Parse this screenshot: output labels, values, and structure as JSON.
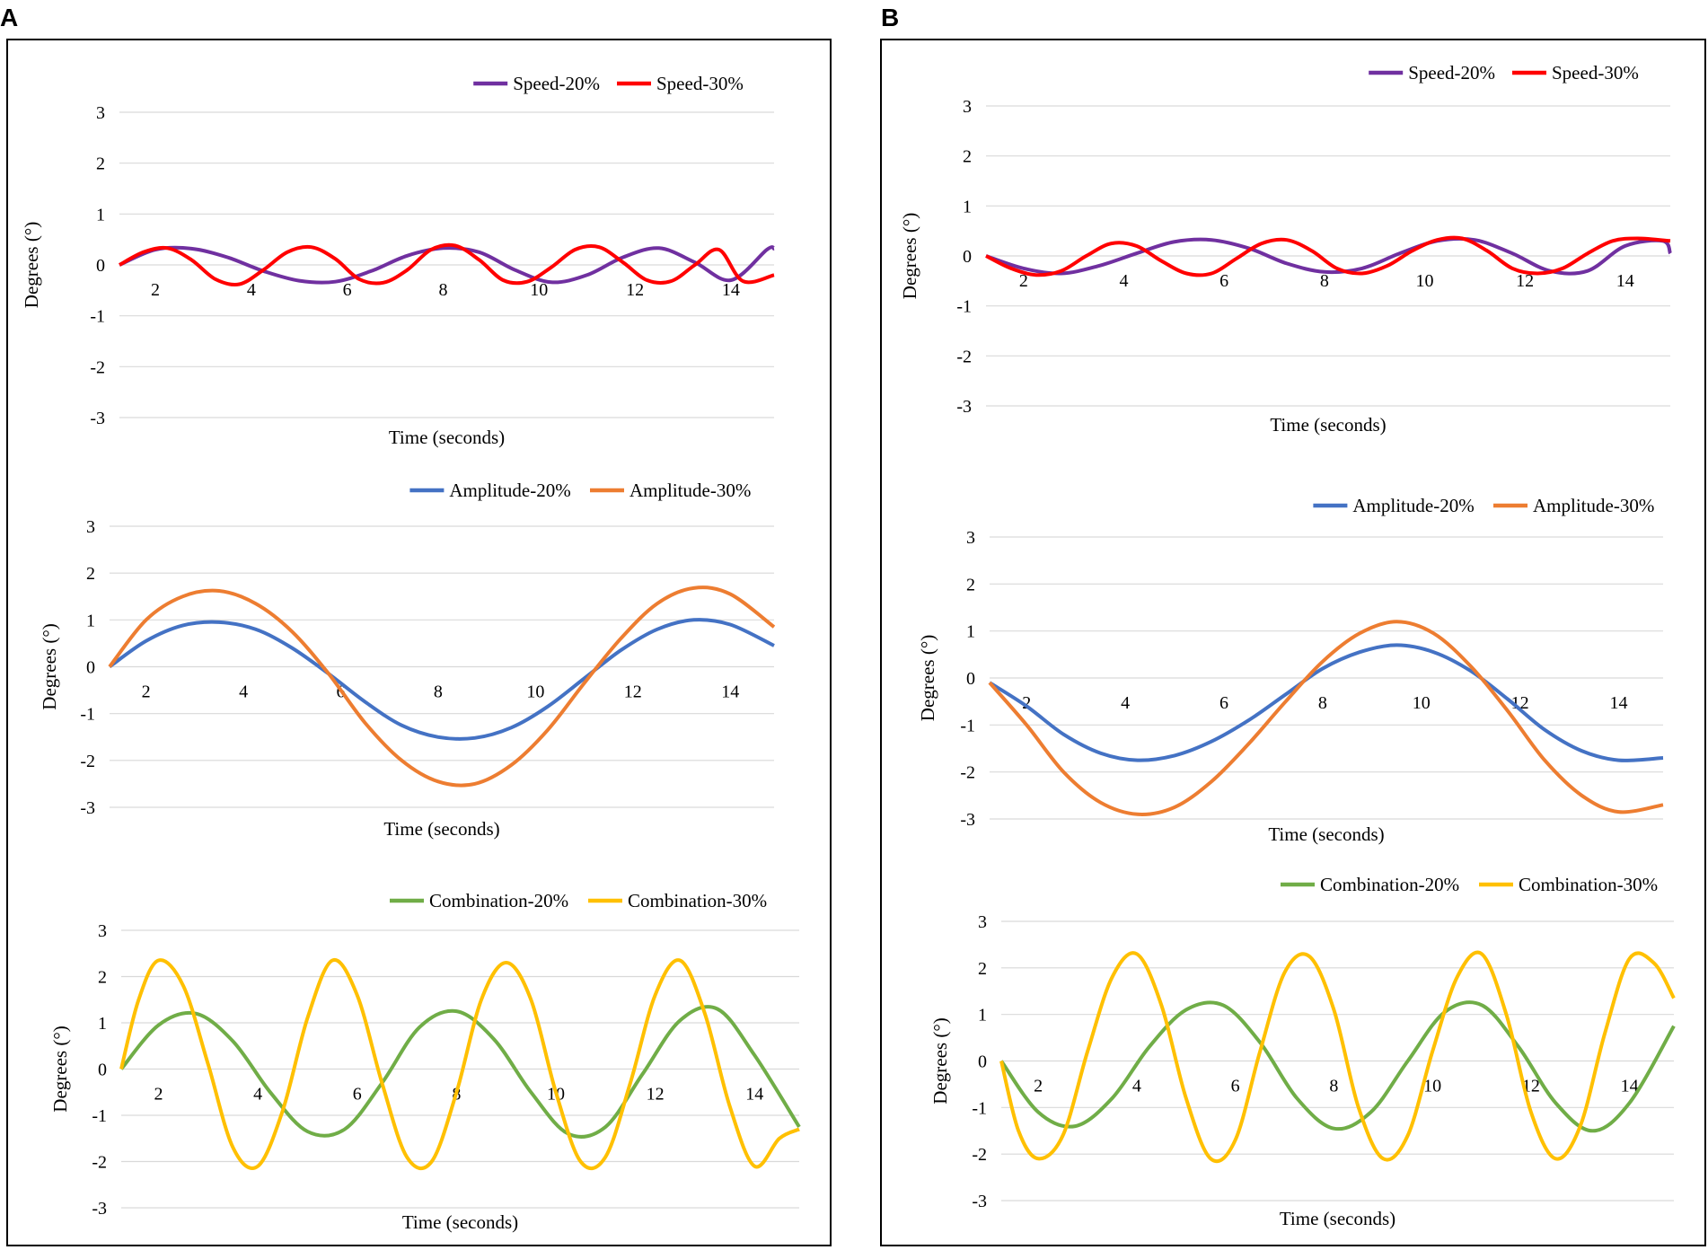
{
  "figure": {
    "panel_labels": [
      "A",
      "B"
    ]
  },
  "chart_data": [
    {
      "type": "line",
      "panel": "A",
      "xlabel": "Time (seconds)",
      "ylabel": "Degrees (°)",
      "xlim": [
        1.25,
        14.9
      ],
      "ylim": [
        -3,
        3
      ],
      "x_ticks": [
        "2",
        "4",
        "6",
        "8",
        "10",
        "12",
        "14"
      ],
      "y_ticks": [
        "3",
        "2",
        "1",
        "0",
        "-1",
        "-2",
        "-3"
      ],
      "series": [
        {
          "name": "Speed-20%",
          "color": "#7030A0",
          "x": [
            1.25,
            2,
            2.75,
            3.5,
            4.25,
            5,
            5.75,
            6.5,
            7.25,
            8,
            8.75,
            9.5,
            10.25,
            11,
            11.75,
            12.5,
            13.25,
            14,
            14.75,
            14.9
          ],
          "y": [
            0,
            0.3,
            0.32,
            0.15,
            -0.12,
            -0.31,
            -0.33,
            -0.12,
            0.18,
            0.33,
            0.25,
            -0.1,
            -0.34,
            -0.2,
            0.15,
            0.33,
            0.05,
            -0.3,
            0.3,
            0.32
          ]
        },
        {
          "name": "Speed-30%",
          "color": "#FF0000",
          "x": [
            1.25,
            1.75,
            2.25,
            2.75,
            3.25,
            3.75,
            4.25,
            4.75,
            5.25,
            5.75,
            6.25,
            6.75,
            7.25,
            7.75,
            8.25,
            8.75,
            9.25,
            9.75,
            10.25,
            10.75,
            11.25,
            11.75,
            12.25,
            12.75,
            13.25,
            13.75,
            14.25,
            14.9
          ],
          "y": [
            0,
            0.25,
            0.33,
            0.1,
            -0.28,
            -0.38,
            -0.1,
            0.25,
            0.35,
            0.12,
            -0.28,
            -0.35,
            -0.1,
            0.3,
            0.38,
            0.1,
            -0.3,
            -0.33,
            -0.05,
            0.3,
            0.35,
            0.05,
            -0.3,
            -0.32,
            0,
            0.3,
            -0.32,
            -0.2
          ]
        }
      ]
    },
    {
      "type": "line",
      "panel": "A",
      "xlabel": "Time (seconds)",
      "ylabel": "Degrees (°)",
      "xlim": [
        1.25,
        14.9
      ],
      "ylim": [
        -3,
        3
      ],
      "x_ticks": [
        "2",
        "4",
        "6",
        "8",
        "10",
        "12",
        "14"
      ],
      "y_ticks": [
        "3",
        "2",
        "1",
        "0",
        "-1",
        "-2",
        "-3"
      ],
      "series": [
        {
          "name": "Amplitude-20%",
          "color": "#4472C4",
          "x": [
            1.25,
            2,
            2.75,
            3.5,
            4.25,
            5,
            5.75,
            6.5,
            7.25,
            8,
            8.75,
            9.5,
            10.25,
            11,
            11.75,
            12.5,
            13.25,
            14,
            14.9
          ],
          "y": [
            0,
            0.55,
            0.88,
            0.95,
            0.8,
            0.4,
            -0.15,
            -0.75,
            -1.25,
            -1.5,
            -1.52,
            -1.3,
            -0.85,
            -0.25,
            0.35,
            0.8,
            1.0,
            0.9,
            0.45
          ]
        },
        {
          "name": "Amplitude-30%",
          "color": "#ED7D31",
          "x": [
            1.25,
            2,
            2.75,
            3.5,
            4.25,
            5,
            5.75,
            6.5,
            7.25,
            8,
            8.75,
            9.5,
            10.25,
            11,
            11.75,
            12.5,
            13.25,
            14,
            14.9
          ],
          "y": [
            0,
            1.0,
            1.5,
            1.62,
            1.35,
            0.75,
            -0.15,
            -1.2,
            -2.0,
            -2.45,
            -2.5,
            -2.1,
            -1.35,
            -0.35,
            0.6,
            1.35,
            1.68,
            1.55,
            0.85
          ]
        }
      ]
    },
    {
      "type": "line",
      "panel": "A",
      "xlabel": "Time (seconds)",
      "ylabel": "Degrees (°)",
      "xlim": [
        1.25,
        14.9
      ],
      "ylim": [
        -3,
        3
      ],
      "x_ticks": [
        "2",
        "4",
        "6",
        "8",
        "10",
        "12",
        "14"
      ],
      "y_ticks": [
        "3",
        "2",
        "1",
        "0",
        "-1",
        "-2",
        "-3"
      ],
      "series": [
        {
          "name": "Combination-20%",
          "color": "#70AD47",
          "x": [
            1.25,
            2,
            2.75,
            3.5,
            4.25,
            5,
            5.75,
            6.5,
            7.25,
            8,
            8.75,
            9.5,
            10.25,
            11,
            11.75,
            12.5,
            13.25,
            14,
            14.9
          ],
          "y": [
            0,
            0.95,
            1.2,
            0.6,
            -0.5,
            -1.35,
            -1.3,
            -0.3,
            0.9,
            1.25,
            0.65,
            -0.5,
            -1.4,
            -1.25,
            -0.1,
            1.05,
            1.3,
            0.3,
            -1.25
          ]
        },
        {
          "name": "Combination-30%",
          "color": "#FFC000",
          "x": [
            1.25,
            1.6,
            2,
            2.5,
            3,
            3.5,
            4,
            4.5,
            5,
            5.5,
            6,
            6.5,
            7,
            7.5,
            8,
            8.5,
            9,
            9.5,
            10,
            10.5,
            11,
            11.5,
            12,
            12.5,
            13,
            13.5,
            14,
            14.5,
            14.9
          ],
          "y": [
            0,
            1.5,
            2.35,
            1.8,
            0.1,
            -1.7,
            -2.1,
            -0.9,
            1.1,
            2.35,
            1.6,
            -0.3,
            -1.9,
            -2.0,
            -0.5,
            1.5,
            2.3,
            1.5,
            -0.5,
            -2.0,
            -1.9,
            -0.3,
            1.6,
            2.35,
            1.2,
            -0.8,
            -2.1,
            -1.5,
            -1.3
          ]
        }
      ]
    },
    {
      "type": "line",
      "panel": "B",
      "xlabel": "Time (seconds)",
      "ylabel": "Degrees (°)",
      "xlim": [
        1.25,
        14.9
      ],
      "ylim": [
        -3,
        3
      ],
      "x_ticks": [
        "2",
        "4",
        "6",
        "8",
        "10",
        "12",
        "14"
      ],
      "y_ticks": [
        "3",
        "2",
        "1",
        "0",
        "-1",
        "-2",
        "-3"
      ],
      "series": [
        {
          "name": "Speed-20%",
          "color": "#7030A0",
          "x": [
            1.25,
            2,
            2.75,
            3.5,
            4.25,
            5,
            5.75,
            6.5,
            7.25,
            8,
            8.75,
            9.5,
            10.25,
            11,
            11.75,
            12.5,
            13.25,
            14,
            14.75,
            14.9
          ],
          "y": [
            0,
            -0.25,
            -0.35,
            -0.2,
            0.05,
            0.28,
            0.32,
            0.15,
            -0.15,
            -0.32,
            -0.25,
            0.05,
            0.3,
            0.32,
            0.05,
            -0.3,
            -0.3,
            0.2,
            0.3,
            0.05
          ]
        },
        {
          "name": "Speed-30%",
          "color": "#FF0000",
          "x": [
            1.25,
            1.75,
            2.25,
            2.75,
            3.25,
            3.75,
            4.25,
            4.75,
            5.25,
            5.75,
            6.25,
            6.75,
            7.25,
            7.75,
            8.25,
            8.75,
            9.25,
            9.75,
            10.25,
            10.75,
            11.25,
            11.75,
            12.25,
            12.75,
            13.25,
            13.75,
            14.25,
            14.9
          ],
          "y": [
            0,
            -0.25,
            -0.38,
            -0.3,
            0,
            0.25,
            0.2,
            -0.1,
            -0.35,
            -0.35,
            -0.05,
            0.25,
            0.32,
            0.1,
            -0.25,
            -0.35,
            -0.2,
            0.1,
            0.32,
            0.35,
            0.1,
            -0.25,
            -0.35,
            -0.25,
            0.05,
            0.3,
            0.35,
            0.3
          ]
        }
      ]
    },
    {
      "type": "line",
      "panel": "B",
      "xlabel": "Time (seconds)",
      "ylabel": "Degrees (°)",
      "xlim": [
        1.25,
        14.9
      ],
      "ylim": [
        -3,
        3
      ],
      "x_ticks": [
        "2",
        "4",
        "6",
        "8",
        "10",
        "12",
        "14"
      ],
      "y_ticks": [
        "3",
        "2",
        "1",
        "0",
        "-1",
        "-2",
        "-3"
      ],
      "series": [
        {
          "name": "Amplitude-20%",
          "color": "#4472C4",
          "x": [
            1.25,
            2,
            2.75,
            3.5,
            4.25,
            5,
            5.75,
            6.5,
            7.25,
            8,
            8.75,
            9.5,
            10.25,
            11,
            11.75,
            12.5,
            13.25,
            14,
            14.9
          ],
          "y": [
            -0.1,
            -0.6,
            -1.2,
            -1.6,
            -1.75,
            -1.65,
            -1.35,
            -0.9,
            -0.35,
            0.2,
            0.55,
            0.7,
            0.55,
            0.15,
            -0.45,
            -1.1,
            -1.55,
            -1.75,
            -1.7
          ]
        },
        {
          "name": "Amplitude-30%",
          "color": "#ED7D31",
          "x": [
            1.25,
            2,
            2.75,
            3.5,
            4.25,
            5,
            5.75,
            6.5,
            7.25,
            8,
            8.75,
            9.5,
            10.25,
            11,
            11.75,
            12.5,
            13.25,
            14,
            14.9
          ],
          "y": [
            -0.1,
            -1.0,
            -2.0,
            -2.65,
            -2.9,
            -2.75,
            -2.2,
            -1.4,
            -0.5,
            0.35,
            0.95,
            1.2,
            0.95,
            0.25,
            -0.7,
            -1.75,
            -2.5,
            -2.85,
            -2.7
          ]
        }
      ]
    },
    {
      "type": "line",
      "panel": "B",
      "xlabel": "Time (seconds)",
      "ylabel": "Degrees (°)",
      "xlim": [
        1.25,
        14.9
      ],
      "ylim": [
        -3,
        3
      ],
      "x_ticks": [
        "2",
        "4",
        "6",
        "8",
        "10",
        "12",
        "14"
      ],
      "y_ticks": [
        "3",
        "2",
        "1",
        "0",
        "-1",
        "-2",
        "-3"
      ],
      "series": [
        {
          "name": "Combination-20%",
          "color": "#70AD47",
          "x": [
            1.25,
            2,
            2.75,
            3.5,
            4.25,
            5,
            5.75,
            6.5,
            7.25,
            8,
            8.75,
            9.5,
            10.25,
            11,
            11.75,
            12.5,
            13.25,
            14,
            14.9
          ],
          "y": [
            0,
            -1.1,
            -1.4,
            -0.8,
            0.3,
            1.1,
            1.2,
            0.4,
            -0.8,
            -1.45,
            -1.1,
            0,
            1.05,
            1.2,
            0.3,
            -0.9,
            -1.5,
            -0.9,
            0.75
          ]
        },
        {
          "name": "Combination-30%",
          "color": "#FFC000",
          "x": [
            1.25,
            1.6,
            2,
            2.5,
            3,
            3.5,
            4,
            4.5,
            5,
            5.5,
            6,
            6.5,
            7,
            7.5,
            8,
            8.5,
            9,
            9.5,
            10,
            10.5,
            11,
            11.5,
            12,
            12.5,
            13,
            13.5,
            14,
            14.5,
            14.9
          ],
          "y": [
            0,
            -1.5,
            -2.1,
            -1.6,
            0.2,
            1.8,
            2.3,
            1.2,
            -0.8,
            -2.1,
            -1.7,
            0.2,
            1.9,
            2.25,
            1.1,
            -1.0,
            -2.1,
            -1.6,
            0.2,
            1.8,
            2.3,
            1.0,
            -1.1,
            -2.1,
            -1.4,
            0.6,
            2.2,
            2.1,
            1.35
          ]
        }
      ]
    }
  ]
}
